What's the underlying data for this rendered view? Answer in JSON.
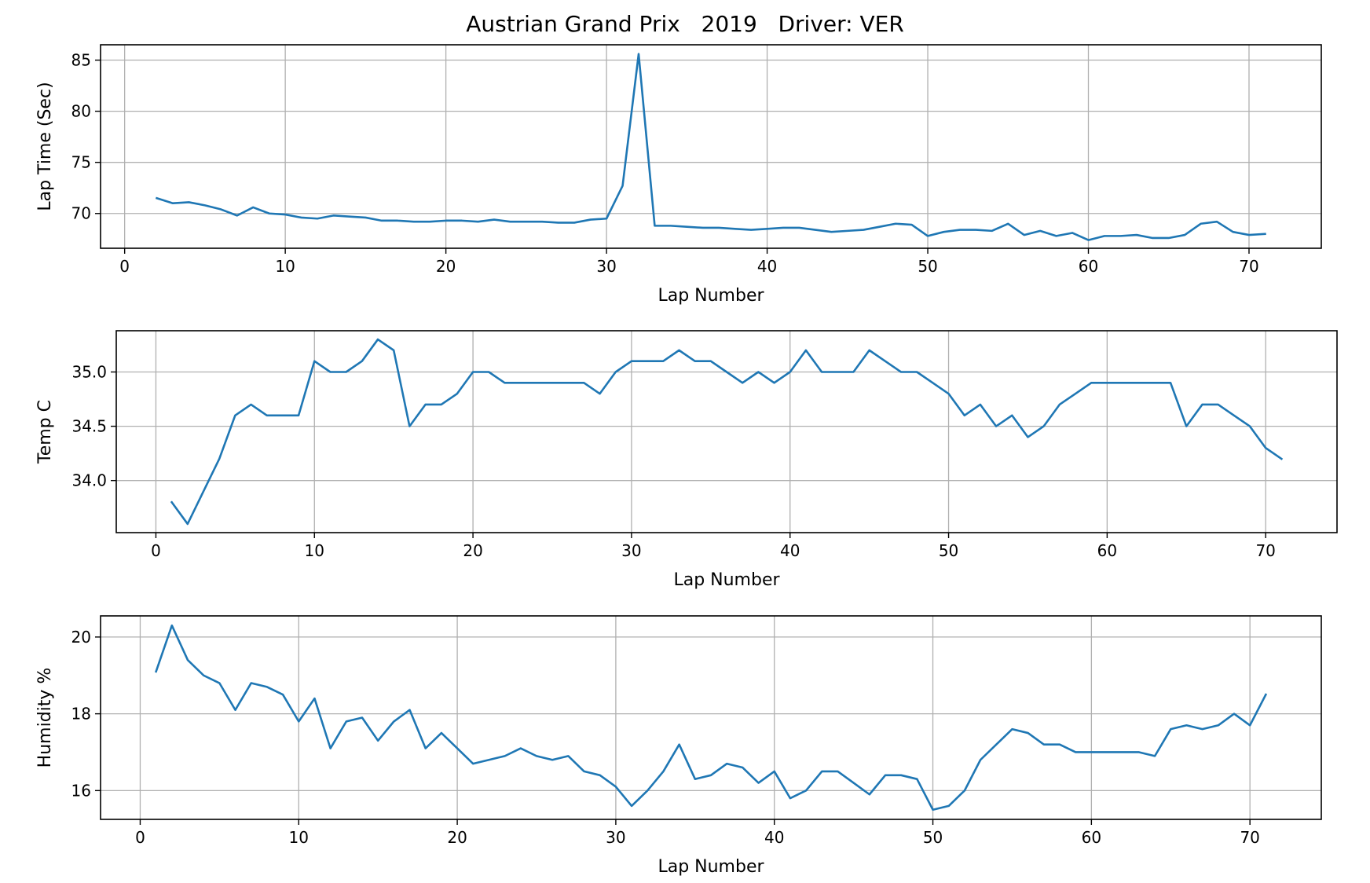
{
  "figure": {
    "title": "Austrian Grand Prix   2019   Driver: VER"
  },
  "chart_data": [
    {
      "type": "line",
      "xlabel": "Lap Number",
      "ylabel": "Lap Time (Sec)",
      "xlim": [
        -1.5,
        74.5
      ],
      "ylim": [
        66.6,
        86.5
      ],
      "xticks": [
        0,
        10,
        20,
        30,
        40,
        50,
        60,
        70
      ],
      "yticks": [
        70,
        75,
        80,
        85
      ],
      "yprecision": 0,
      "grid": true,
      "color": "#1f77b4",
      "x": [
        2,
        3,
        4,
        5,
        6,
        7,
        8,
        9,
        10,
        11,
        12,
        13,
        14,
        15,
        16,
        17,
        18,
        19,
        20,
        21,
        22,
        23,
        24,
        25,
        26,
        27,
        28,
        29,
        30,
        31,
        32,
        33,
        34,
        35,
        36,
        37,
        38,
        39,
        40,
        41,
        42,
        43,
        44,
        45,
        46,
        47,
        48,
        49,
        50,
        51,
        52,
        53,
        54,
        55,
        56,
        57,
        58,
        59,
        60,
        61,
        62,
        63,
        64,
        65,
        66,
        67,
        68,
        69,
        70,
        71
      ],
      "y": [
        71.5,
        71.0,
        71.1,
        70.8,
        70.4,
        69.8,
        70.6,
        70.0,
        69.9,
        69.6,
        69.5,
        69.8,
        69.7,
        69.6,
        69.3,
        69.3,
        69.2,
        69.2,
        69.3,
        69.3,
        69.2,
        69.4,
        69.2,
        69.2,
        69.2,
        69.1,
        69.1,
        69.4,
        69.5,
        72.7,
        85.6,
        68.8,
        68.8,
        68.7,
        68.6,
        68.6,
        68.5,
        68.4,
        68.5,
        68.6,
        68.6,
        68.4,
        68.2,
        68.3,
        68.4,
        68.7,
        69.0,
        68.9,
        67.8,
        68.2,
        68.4,
        68.4,
        68.3,
        69.0,
        67.9,
        68.3,
        67.8,
        68.1,
        67.4,
        67.8,
        67.8,
        67.9,
        67.6,
        67.6,
        67.9,
        69.0,
        69.2,
        68.2,
        67.9,
        68.0
      ]
    },
    {
      "type": "line",
      "xlabel": "Lap Number",
      "ylabel": "Temp C",
      "xlim": [
        -2.5,
        74.5
      ],
      "ylim": [
        33.52,
        35.38
      ],
      "xticks": [
        0,
        10,
        20,
        30,
        40,
        50,
        60,
        70
      ],
      "yticks": [
        34.0,
        34.5,
        35.0
      ],
      "yprecision": 1,
      "grid": true,
      "color": "#1f77b4",
      "x": [
        1,
        2,
        3,
        4,
        5,
        6,
        7,
        8,
        9,
        10,
        11,
        12,
        13,
        14,
        15,
        16,
        17,
        18,
        19,
        20,
        21,
        22,
        23,
        24,
        25,
        26,
        27,
        28,
        29,
        30,
        31,
        32,
        33,
        34,
        35,
        36,
        37,
        38,
        39,
        40,
        41,
        42,
        43,
        44,
        45,
        46,
        47,
        48,
        49,
        50,
        51,
        52,
        53,
        54,
        55,
        56,
        57,
        58,
        59,
        60,
        61,
        62,
        63,
        64,
        65,
        66,
        67,
        68,
        69,
        70,
        71
      ],
      "y": [
        33.8,
        33.6,
        33.9,
        34.2,
        34.6,
        34.7,
        34.6,
        34.6,
        34.6,
        35.1,
        35.0,
        35.0,
        35.1,
        35.3,
        35.2,
        34.5,
        34.7,
        34.7,
        34.8,
        35.0,
        35.0,
        34.9,
        34.9,
        34.9,
        34.9,
        34.9,
        34.9,
        34.8,
        35.0,
        35.1,
        35.1,
        35.1,
        35.2,
        35.1,
        35.1,
        35.0,
        34.9,
        35.0,
        34.9,
        35.0,
        35.2,
        35.0,
        35.0,
        35.0,
        35.2,
        35.1,
        35.0,
        35.0,
        34.9,
        34.8,
        34.6,
        34.7,
        34.5,
        34.6,
        34.4,
        34.5,
        34.7,
        34.8,
        34.9,
        34.9,
        34.9,
        34.9,
        34.9,
        34.9,
        34.5,
        34.7,
        34.7,
        34.6,
        34.5,
        34.3,
        34.2
      ]
    },
    {
      "type": "line",
      "xlabel": "Lap Number",
      "ylabel": "Humidity %",
      "xlim": [
        -2.5,
        74.5
      ],
      "ylim": [
        15.25,
        20.55
      ],
      "xticks": [
        0,
        10,
        20,
        30,
        40,
        50,
        60,
        70
      ],
      "yticks": [
        16,
        18,
        20
      ],
      "yprecision": 0,
      "grid": true,
      "color": "#1f77b4",
      "x": [
        1,
        2,
        3,
        4,
        5,
        6,
        7,
        8,
        9,
        10,
        11,
        12,
        13,
        14,
        15,
        16,
        17,
        18,
        19,
        20,
        21,
        22,
        23,
        24,
        25,
        26,
        27,
        28,
        29,
        30,
        31,
        32,
        33,
        34,
        35,
        36,
        37,
        38,
        39,
        40,
        41,
        42,
        43,
        44,
        45,
        46,
        47,
        48,
        49,
        50,
        51,
        52,
        53,
        54,
        55,
        56,
        57,
        58,
        59,
        60,
        61,
        62,
        63,
        64,
        65,
        66,
        67,
        68,
        69,
        70,
        71
      ],
      "y": [
        19.1,
        20.3,
        19.4,
        19.0,
        18.8,
        18.1,
        18.8,
        18.7,
        18.5,
        17.8,
        18.4,
        17.1,
        17.8,
        17.9,
        17.3,
        17.8,
        18.1,
        17.1,
        17.5,
        17.1,
        16.7,
        16.8,
        16.9,
        17.1,
        16.9,
        16.8,
        16.9,
        16.5,
        16.4,
        16.1,
        15.6,
        16.0,
        16.5,
        17.2,
        16.3,
        16.4,
        16.7,
        16.6,
        16.2,
        16.5,
        15.8,
        16.0,
        16.5,
        16.5,
        16.2,
        15.9,
        16.4,
        16.4,
        16.3,
        15.5,
        15.6,
        16.0,
        16.8,
        17.2,
        17.6,
        17.5,
        17.2,
        17.2,
        17.0,
        17.0,
        17.0,
        17.0,
        17.0,
        16.9,
        17.6,
        17.7,
        17.6,
        17.7,
        18.0,
        17.7,
        18.5
      ]
    }
  ]
}
